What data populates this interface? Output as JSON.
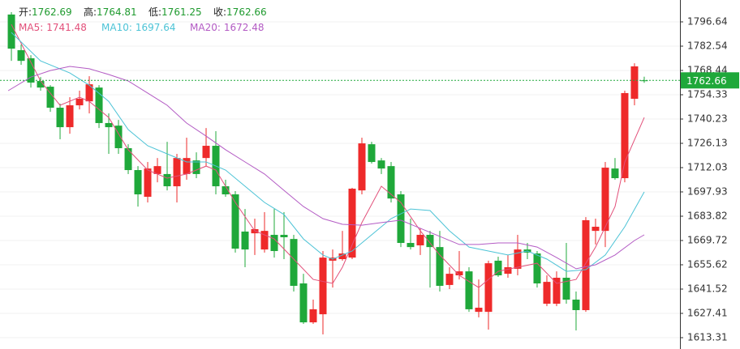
{
  "chart_data": {
    "type": "candlestick",
    "up_color": "#ee2a2a",
    "down_color": "#1fa83a",
    "ohlc": [
      {
        "label": "开:",
        "value": 1762.69
      },
      {
        "label": "高:",
        "value": 1764.81
      },
      {
        "label": "低:",
        "value": 1761.25
      },
      {
        "label": "收:",
        "value": 1762.66
      }
    ],
    "ohlc_color": "#1e9a2e",
    "price_color": "#1fa83a",
    "open": [
      1800.9,
      1780.2,
      1775.5,
      1762.3,
      1759.0,
      1746.8,
      1735.5,
      1748.2,
      1750.5,
      1758.5,
      1737.9,
      1736.4,
      1723.3,
      1710.6,
      1695.1,
      1708.3,
      1708.3,
      1701.2,
      1708.3,
      1716.2,
      1717.6,
      1724.7,
      1701.2,
      1696.5,
      1674.9,
      1673.9,
      1664.5,
      1673.0,
      1673.0,
      1670.6,
      1644.8,
      1622.2,
      1626.9,
      1658.0,
      1658.9,
      1659.8,
      1698.8,
      1725.6,
      1716.2,
      1712.9,
      1696.5,
      1668.3,
      1666.9,
      1673.0,
      1665.9,
      1643.9,
      1649.5,
      1651.8,
      1628.3,
      1628.3,
      1658.0,
      1650.4,
      1653.3,
      1664.5,
      1662.2,
      1633.0,
      1633.0,
      1648.1,
      1635.4,
      1629.3,
      1675.3,
      1675.3,
      1711.5,
      1705.9,
      1752.0,
      1762.69
    ],
    "high": [
      1802.3,
      1783.5,
      1777.3,
      1764.6,
      1759.9,
      1749.1,
      1752.9,
      1756.7,
      1765.1,
      1759.9,
      1743.5,
      1739.7,
      1725.6,
      1712.9,
      1715.3,
      1717.6,
      1727.0,
      1720.0,
      1729.4,
      1720.9,
      1735.0,
      1733.2,
      1705.0,
      1698.4,
      1688.0,
      1682.4,
      1686.2,
      1688.0,
      1686.2,
      1673.0,
      1650.4,
      1635.4,
      1663.6,
      1664.5,
      1675.3,
      1700.3,
      1729.4,
      1727.0,
      1717.6,
      1715.3,
      1698.4,
      1682.4,
      1676.8,
      1675.3,
      1675.3,
      1654.2,
      1663.6,
      1654.2,
      1647.1,
      1658.0,
      1660.3,
      1661.3,
      1673.0,
      1668.3,
      1663.6,
      1649.5,
      1651.8,
      1668.3,
      1640.1,
      1683.3,
      1682.4,
      1715.3,
      1717.6,
      1756.7,
      1772.6,
      1764.81
    ],
    "low": [
      1774.0,
      1771.7,
      1758.5,
      1756.7,
      1744.4,
      1728.5,
      1731.7,
      1745.8,
      1743.5,
      1735.0,
      1720.0,
      1720.0,
      1708.3,
      1689.4,
      1691.8,
      1703.5,
      1698.8,
      1691.8,
      1705.0,
      1705.9,
      1712.9,
      1696.5,
      1695.1,
      1662.7,
      1654.2,
      1661.3,
      1662.7,
      1659.8,
      1658.9,
      1640.1,
      1621.3,
      1621.3,
      1615.2,
      1642.4,
      1658.0,
      1658.9,
      1696.5,
      1714.4,
      1708.3,
      1691.8,
      1665.9,
      1664.5,
      1661.3,
      1642.4,
      1640.1,
      1641.5,
      1647.1,
      1628.3,
      1625.1,
      1618.0,
      1648.6,
      1648.1,
      1649.5,
      1658.9,
      1642.4,
      1631.6,
      1631.6,
      1633.0,
      1617.5,
      1628.3,
      1667.4,
      1665.9,
      1705.0,
      1703.5,
      1748.2,
      1761.25
    ],
    "close": [
      1781.1,
      1774.0,
      1761.4,
      1758.5,
      1746.8,
      1735.5,
      1748.2,
      1752.0,
      1760.4,
      1737.9,
      1735.5,
      1723.3,
      1710.6,
      1696.5,
      1711.5,
      1712.9,
      1701.2,
      1717.6,
      1717.6,
      1708.3,
      1724.7,
      1701.2,
      1696.5,
      1665.0,
      1664.5,
      1676.3,
      1675.3,
      1663.6,
      1671.6,
      1643.4,
      1622.2,
      1629.8,
      1659.8,
      1659.8,
      1662.2,
      1699.8,
      1726.1,
      1715.3,
      1711.5,
      1694.1,
      1668.3,
      1665.9,
      1673.0,
      1665.9,
      1643.4,
      1650.4,
      1651.8,
      1629.8,
      1630.7,
      1656.5,
      1649.5,
      1654.2,
      1664.5,
      1662.7,
      1644.8,
      1645.7,
      1648.1,
      1635.4,
      1629.3,
      1681.5,
      1677.7,
      1712.0,
      1705.9,
      1755.3,
      1770.8,
      1762.66
    ],
    "series": [
      {
        "name": "MA5:",
        "current": 1741.48,
        "color": "#e2507a",
        "x": [
          0,
          3,
          5,
          7,
          8,
          10,
          12,
          14,
          16,
          18,
          20,
          21,
          23,
          25,
          27,
          29,
          31,
          33,
          34,
          36,
          38,
          40,
          42,
          44,
          46,
          48,
          50,
          52,
          54,
          56,
          58,
          60,
          62,
          63,
          65
        ],
        "values": [
          1795.2,
          1762.3,
          1748.2,
          1752.9,
          1750.5,
          1741.1,
          1722.4,
          1710.6,
          1705.9,
          1708.3,
          1712.9,
          1710.6,
          1691.8,
          1675.3,
          1670.6,
          1658.9,
          1647.1,
          1644.8,
          1654.2,
          1680.1,
          1701.2,
          1691.8,
          1675.3,
          1661.3,
          1649.5,
          1642.4,
          1651.8,
          1654.2,
          1656.5,
          1644.8,
          1647.1,
          1665.9,
          1689.4,
          1715.3,
          1741.1
        ]
      },
      {
        "name": "MA10:",
        "current": 1697.64,
        "color": "#4cc3d6",
        "x": [
          0,
          3,
          6,
          8,
          10,
          12,
          14,
          16,
          18,
          20,
          22,
          24,
          26,
          28,
          30,
          32,
          33,
          35,
          37,
          39,
          41,
          43,
          45,
          47,
          49,
          51,
          53,
          55,
          57,
          59,
          61,
          63,
          65
        ],
        "values": [
          1790.5,
          1774.0,
          1767.0,
          1759.9,
          1750.5,
          1734.1,
          1724.7,
          1720.0,
          1715.3,
          1715.3,
          1710.6,
          1701.2,
          1691.8,
          1684.8,
          1670.6,
          1661.3,
          1658.9,
          1663.6,
          1673.0,
          1682.4,
          1688.0,
          1687.1,
          1675.3,
          1665.9,
          1663.6,
          1661.3,
          1663.6,
          1658.9,
          1651.8,
          1652.8,
          1661.3,
          1677.7,
          1697.9
        ]
      },
      {
        "name": "MA20:",
        "current": 1672.48,
        "color": "#b35bc4",
        "x": [
          -0.33,
          2,
          4,
          6,
          8,
          10,
          12,
          14,
          16,
          18,
          20,
          22,
          24,
          26,
          28,
          30,
          32,
          34,
          36,
          38,
          40,
          42,
          44,
          46,
          48,
          50,
          52,
          54,
          56,
          58,
          60,
          62,
          64,
          65
        ],
        "values": [
          1756.7,
          1764.6,
          1768.4,
          1770.8,
          1769.4,
          1766.1,
          1762.3,
          1755.3,
          1748.2,
          1737.9,
          1730.3,
          1722.4,
          1715.3,
          1708.3,
          1698.8,
          1689.4,
          1682.4,
          1679.1,
          1678.6,
          1680.1,
          1681.5,
          1676.8,
          1672.1,
          1667.4,
          1667.4,
          1668.3,
          1668.3,
          1665.9,
          1659.8,
          1653.3,
          1655.6,
          1661.3,
          1669.7,
          1673.0
        ]
      }
    ],
    "xlim": [
      -1.17,
      68.67
    ],
    "ylim": [
      1606.73,
      1809.33
    ],
    "yticks": [
      1796.64,
      1782.54,
      1768.44,
      1754.33,
      1740.23,
      1726.13,
      1712.03,
      1697.93,
      1683.82,
      1669.72,
      1655.62,
      1641.52,
      1627.41,
      1613.31
    ],
    "grid": true
  }
}
